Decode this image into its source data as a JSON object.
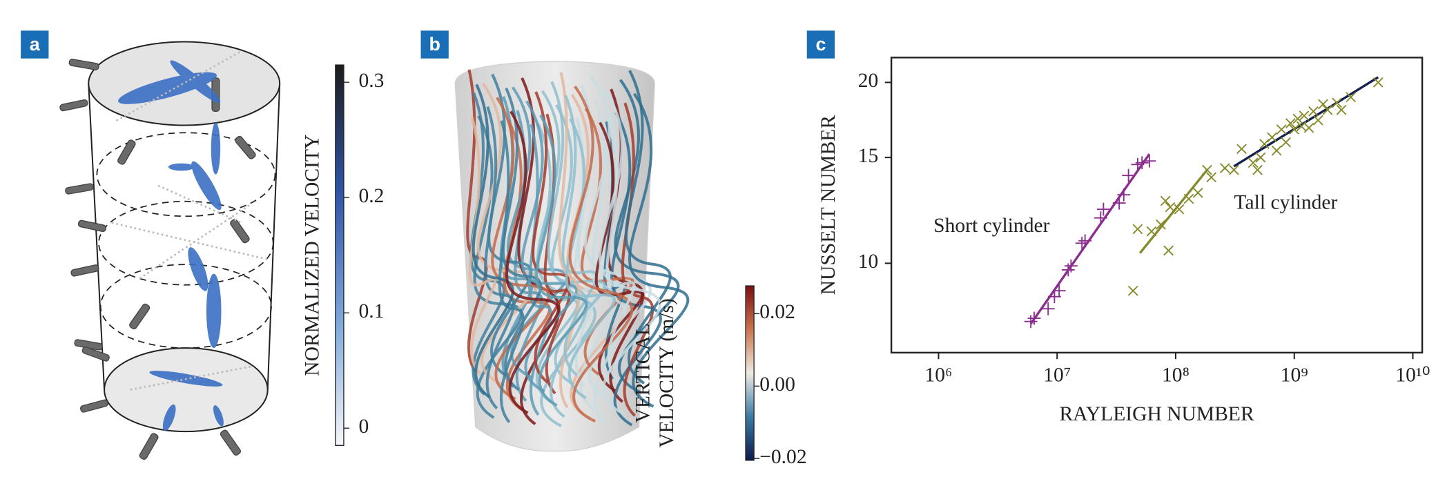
{
  "chart_data": [
    {
      "type": "colorbar",
      "panel": "a",
      "title": [
        "NORMALIZED VELOCITY"
      ],
      "colors": [
        "#f6f6fa",
        "#7aa6da",
        "#2e55a8",
        "#1c1c1c"
      ],
      "ylim": [
        -0.015,
        0.315
      ],
      "yticks": [
        0,
        0.1,
        0.2,
        0.3
      ]
    },
    {
      "type": "colorbar",
      "panel": "b",
      "title": [
        "VERTICAL",
        "VELOCITY (m/s)"
      ],
      "colors": [
        "#0f1a4e",
        "#3a7ca6",
        "#eeeae4",
        "#c9764c",
        "#7a0e14"
      ],
      "ylim": [
        -0.0205,
        0.0277
      ],
      "yticks": [
        {
          "value": -0.02,
          "label": "−0.02"
        },
        {
          "value": 0,
          "label": "0.00"
        },
        0.02
      ]
    },
    {
      "type": "scatter",
      "panel": "c",
      "xlabel": "RAYLEIGH NUMBER",
      "ylabel": "NUSSELT NUMBER",
      "xlog": true,
      "ylog": true,
      "xlim": [
        400000,
        12000000000
      ],
      "ylim": [
        7.1,
        22
      ],
      "xticks": [
        {
          "value": 1000000,
          "label": "10⁶"
        },
        {
          "value": 10000000,
          "label": "10⁷"
        },
        {
          "value": 100000000,
          "label": "10⁸"
        },
        {
          "value": 1000000000,
          "label": "10⁹"
        },
        {
          "value": 10000000000,
          "label": "10¹⁰"
        }
      ],
      "yticks": [
        10,
        15,
        20
      ],
      "series": [
        {
          "name": "Short cylinder",
          "color": "#8b2d8f",
          "marker": "+",
          "x": [
            6000000,
            6400000,
            8400000,
            9500000,
            10400000,
            12400000,
            13100000,
            16200000,
            17200000,
            23300000,
            24600000,
            33400000,
            36500000,
            40000000,
            47800000,
            52000000,
            60000000
          ],
          "values": [
            8.0,
            8.1,
            8.4,
            8.8,
            9.0,
            9.75,
            9.9,
            10.8,
            10.9,
            11.9,
            12.3,
            12.6,
            13.0,
            14.0,
            14.6,
            14.7,
            14.8
          ]
        },
        {
          "name": "Tall cylinder",
          "color": "#858a2a",
          "marker": "x",
          "x": [
            43700000,
            47800000,
            62600000,
            75000000,
            82000000,
            87000000,
            89800000,
            107000000,
            129000000,
            154000000,
            184000000,
            200000000,
            260000000,
            310000000,
            360000000,
            450000000,
            490000000,
            520000000,
            560000000,
            650000000,
            710000000,
            780000000,
            850000000,
            930000000,
            1000000000,
            1070000000,
            1150000000,
            1210000000,
            1330000000,
            1450000000,
            1590000000,
            1750000000,
            1910000000,
            2290000000,
            2500000000,
            3000000000,
            5100000000
          ],
          "values": [
            9.0,
            11.4,
            11.3,
            11.6,
            12.7,
            10.5,
            12.4,
            12.3,
            12.8,
            13.1,
            14.3,
            13.9,
            14.4,
            14.3,
            15.5,
            14.7,
            14.3,
            15.0,
            15.8,
            16.2,
            15.4,
            16.7,
            15.9,
            17.1,
            16.7,
            17.4,
            16.9,
            17.6,
            16.8,
            17.9,
            17.3,
            18.4,
            18.0,
            18.5,
            18.0,
            18.9,
            20.0
          ]
        }
      ],
      "fits": [
        {
          "color": "#8b2d8f",
          "x": [
            6000000,
            60000000
          ],
          "values": [
            7.93,
            15.2
          ]
        },
        {
          "color": "#858a2a",
          "x": [
            50000000,
            184000000
          ],
          "values": [
            10.4,
            14.3
          ]
        },
        {
          "color": "#14204f",
          "x": [
            310000000,
            5100000000
          ],
          "values": [
            14.5,
            20.4
          ]
        }
      ]
    }
  ]
}
